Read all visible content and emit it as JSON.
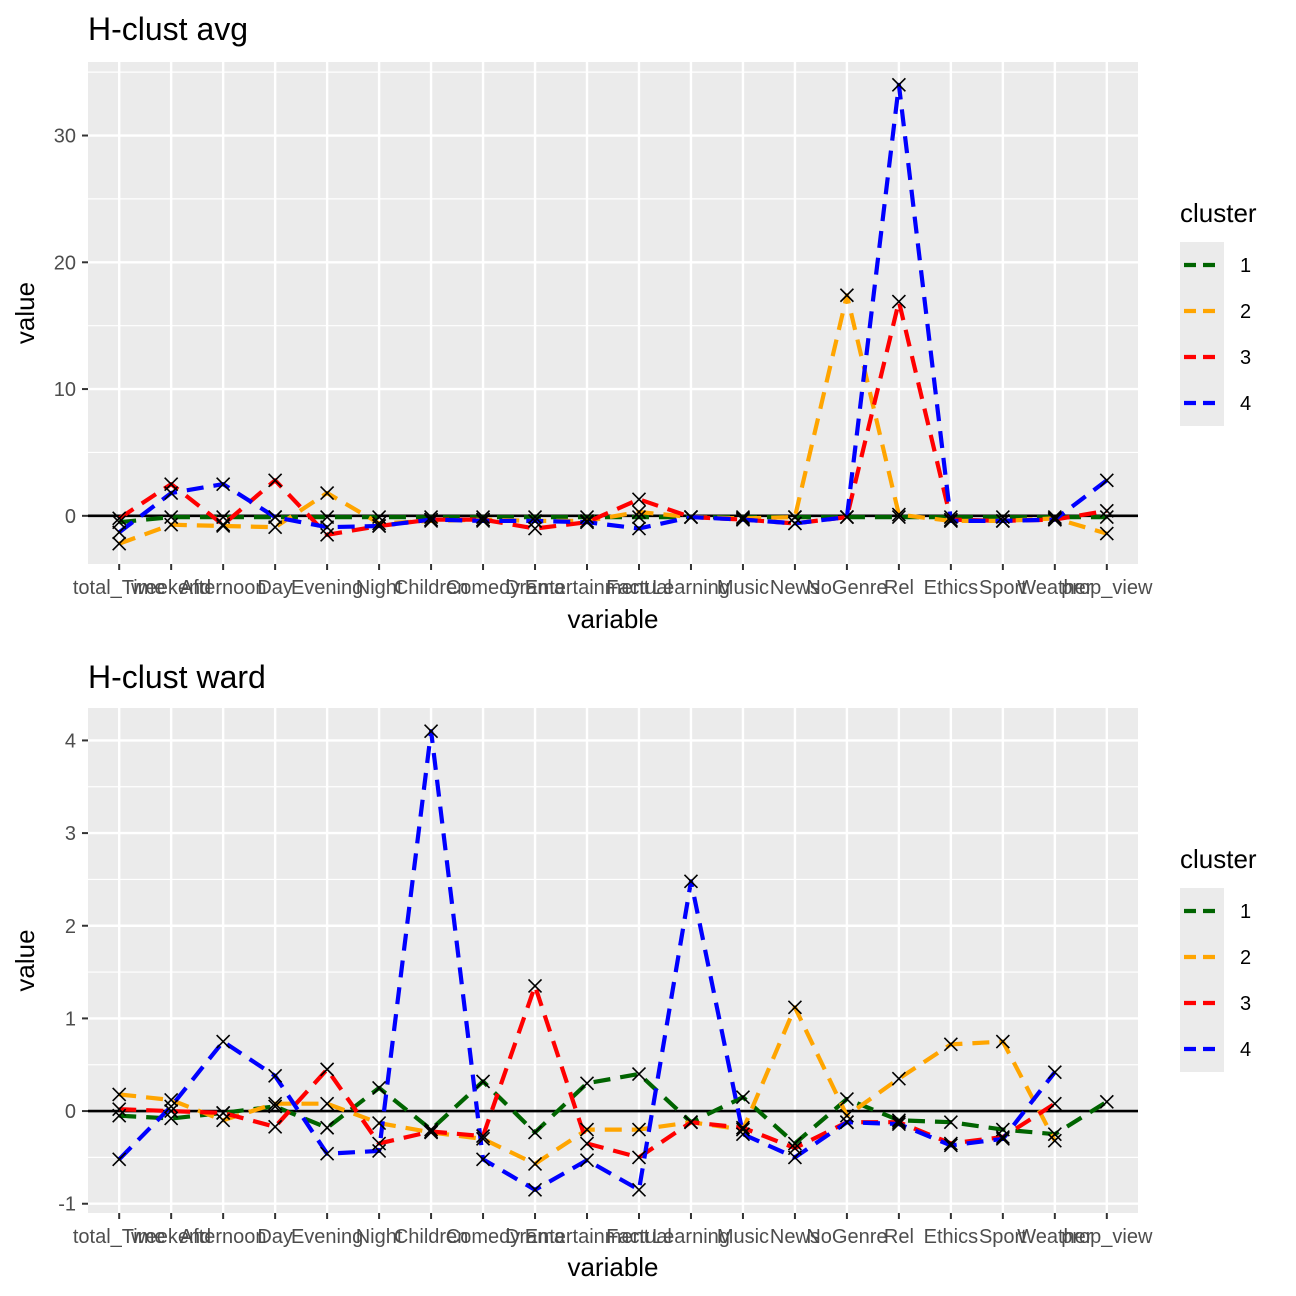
{
  "chart_data": [
    {
      "type": "line",
      "title": "H-clust avg",
      "xlabel": "variable",
      "ylabel": "value",
      "ylim": [
        -3.8,
        35.8
      ],
      "y_ticks": [
        0,
        10,
        20,
        30
      ],
      "categories": [
        "total_Time",
        "weekend",
        "Afternoon",
        "Day",
        "Evening",
        "Night",
        "Children",
        "Comedy",
        "Drama",
        "Entertainment",
        "Factual",
        "Learning",
        "Music",
        "News",
        "NoGenre",
        "Rel",
        "Ethics",
        "Sport",
        "Weather",
        "prop_view"
      ],
      "hline": 0,
      "legend": {
        "title": "cluster",
        "position": "right"
      },
      "series": [
        {
          "name": "1",
          "color": "#006400",
          "values": [
            -0.5,
            -0.1,
            -0.1,
            -0.1,
            -0.1,
            -0.1,
            -0.1,
            -0.1,
            -0.1,
            -0.1,
            -0.1,
            -0.1,
            -0.1,
            -0.1,
            -0.1,
            -0.1,
            -0.1,
            -0.1,
            -0.1,
            -0.1
          ]
        },
        {
          "name": "2",
          "color": "#FFA500",
          "values": [
            -2.2,
            -0.7,
            -0.8,
            -0.9,
            1.8,
            -0.6,
            -0.4,
            -0.3,
            -0.4,
            -0.4,
            0.3,
            -0.1,
            -0.2,
            -0.1,
            17.4,
            0.1,
            -0.4,
            -0.4,
            -0.2,
            -1.4
          ]
        },
        {
          "name": "3",
          "color": "#FF0000",
          "values": [
            -0.2,
            2.5,
            -0.7,
            2.8,
            -1.5,
            -0.8,
            -0.3,
            -0.3,
            -1.0,
            -0.5,
            1.3,
            -0.1,
            -0.3,
            -0.6,
            -0.1,
            16.9,
            -0.3,
            -0.4,
            -0.3,
            0.4
          ]
        },
        {
          "name": "4",
          "color": "#0000FF",
          "values": [
            -1.3,
            1.8,
            2.5,
            -0.1,
            -0.9,
            -0.8,
            -0.3,
            -0.4,
            -0.4,
            -0.5,
            -1.0,
            -0.1,
            -0.3,
            -0.6,
            -0.1,
            34.0,
            -0.4,
            -0.4,
            -0.3,
            2.8
          ]
        }
      ]
    },
    {
      "type": "line",
      "title": "H-clust ward",
      "xlabel": "variable",
      "ylabel": "value",
      "ylim": [
        -1.1,
        4.35
      ],
      "y_ticks": [
        -1,
        0,
        1,
        2,
        3,
        4
      ],
      "categories": [
        "total_Time",
        "weekend",
        "Afternoon",
        "Day",
        "Evening",
        "Night",
        "Children",
        "Comedy",
        "Drama",
        "Entertainment",
        "Factual",
        "Learning",
        "Music",
        "News",
        "NoGenre",
        "Rel",
        "Ethics",
        "Sport",
        "Weather",
        "prop_view"
      ],
      "hline": 0,
      "legend": {
        "title": "cluster",
        "position": "right"
      },
      "series": [
        {
          "name": "1",
          "color": "#006400",
          "values": [
            -0.05,
            -0.08,
            -0.02,
            0.05,
            -0.18,
            0.25,
            -0.2,
            0.32,
            -0.23,
            0.3,
            0.4,
            -0.12,
            0.15,
            -0.35,
            0.13,
            -0.1,
            -0.12,
            -0.2,
            -0.25,
            0.1
          ]
        },
        {
          "name": "2",
          "color": "#FFA500",
          "values": [
            0.18,
            0.12,
            -0.1,
            0.08,
            0.08,
            -0.13,
            -0.23,
            -0.3,
            -0.57,
            -0.2,
            -0.2,
            -0.12,
            -0.2,
            1.12,
            -0.05,
            0.35,
            0.72,
            0.75,
            -0.32,
            null
          ]
        },
        {
          "name": "3",
          "color": "#FF0000",
          "values": [
            0.02,
            0.0,
            -0.02,
            -0.17,
            0.45,
            -0.35,
            -0.22,
            -0.27,
            1.35,
            -0.35,
            -0.5,
            -0.12,
            -0.18,
            -0.4,
            -0.12,
            -0.12,
            -0.35,
            -0.28,
            0.08,
            null
          ]
        },
        {
          "name": "4",
          "color": "#0000FF",
          "values": [
            -0.52,
            0.05,
            0.75,
            0.38,
            -0.46,
            -0.43,
            4.1,
            -0.52,
            -0.85,
            -0.53,
            -0.85,
            2.48,
            -0.25,
            -0.5,
            -0.12,
            -0.14,
            -0.37,
            -0.3,
            0.42,
            null
          ]
        }
      ]
    }
  ]
}
